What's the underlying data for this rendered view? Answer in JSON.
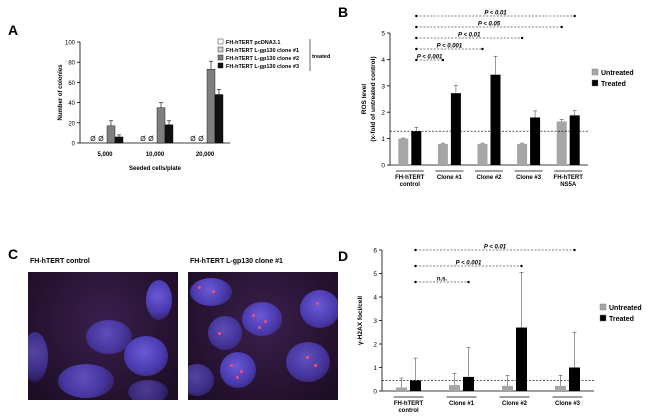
{
  "panels": {
    "a": "A",
    "b": "B",
    "c": "C",
    "d": "D"
  },
  "micrographs": [
    {
      "label": "FH-hTERT control"
    },
    {
      "label": "FH-hTERT L-gp130 clone #1"
    }
  ],
  "chart_data": [
    {
      "type": "bar",
      "panel": "A",
      "xlabel": "Seeded cells/plate",
      "ylabel": "Number of colonies",
      "ylim": [
        0,
        100
      ],
      "yticks": [
        0,
        20,
        40,
        60,
        80,
        100
      ],
      "categories": [
        "5,000",
        "10,000",
        "20,000"
      ],
      "legend_group_label": "treated",
      "zero_marker": "Ø",
      "series": [
        {
          "name": "FH-hTERT pcDNA3.1",
          "color": "#ffffff",
          "values": [
            0,
            0,
            0
          ]
        },
        {
          "name": "FH-hTERT L-gp130 clone #1",
          "color": "#d0d0d0",
          "values": [
            0,
            0,
            0
          ]
        },
        {
          "name": "FH-hTERT L-gp130 clone #2",
          "color": "#7f7f7f",
          "values": [
            17,
            35,
            73
          ]
        },
        {
          "name": "FH-hTERT L-gp130 clone #3",
          "color": "#111111",
          "values": [
            6,
            18,
            48
          ]
        }
      ],
      "errors": [
        [
          0,
          0,
          0
        ],
        [
          0,
          0,
          0
        ],
        [
          5,
          5,
          8
        ],
        [
          2,
          4,
          5
        ]
      ]
    },
    {
      "type": "bar",
      "panel": "B",
      "ylabel": "ROS level",
      "ylabel2": "(x-fold of untreated control)",
      "ylim": [
        0,
        5
      ],
      "yticks": [
        0,
        1,
        2,
        3,
        4,
        5
      ],
      "categories": [
        "FH-hTERT control",
        "Clone #1",
        "Clone #2",
        "Clone #3",
        "FH-hTERT NS5A"
      ],
      "series": [
        {
          "name": "Untreated",
          "color": "#a6a6a6",
          "values": [
            1.0,
            0.8,
            0.8,
            0.8,
            1.65
          ]
        },
        {
          "name": "Treated",
          "color": "#000000",
          "values": [
            1.28,
            2.72,
            3.42,
            1.8,
            1.88
          ]
        }
      ],
      "errors": [
        [
          0.02,
          0.03,
          0.03,
          0.03,
          0.08
        ],
        [
          0.15,
          0.3,
          0.7,
          0.25,
          0.18
        ]
      ],
      "reference_line": 1.28,
      "significance": [
        {
          "from": 1,
          "to": 2,
          "label": "P < 0.001"
        },
        {
          "from": 1,
          "to": 4,
          "label": "P < 0.001"
        },
        {
          "from": 1,
          "to": 6,
          "label": "P < 0.01"
        },
        {
          "from": 1,
          "to": 8,
          "label": "P < 0.05"
        },
        {
          "from": 1,
          "to": 9,
          "label": "P < 0.01"
        }
      ]
    },
    {
      "type": "bar",
      "panel": "D",
      "ylabel": "γ-H2AX foci/cell",
      "ylim": [
        0,
        6
      ],
      "yticks": [
        0,
        1,
        2,
        3,
        4,
        5,
        6
      ],
      "categories": [
        "FH-hTERT control",
        "Clone #1",
        "Clone #2",
        "Clone #3"
      ],
      "series": [
        {
          "name": "Untreated",
          "color": "#a6a6a6",
          "values": [
            0.15,
            0.25,
            0.22,
            0.22
          ]
        },
        {
          "name": "Treated",
          "color": "#000000",
          "values": [
            0.45,
            0.6,
            2.7,
            1.0
          ]
        }
      ],
      "errors": [
        [
          0.4,
          0.5,
          0.45,
          0.45
        ],
        [
          0.95,
          1.25,
          2.35,
          1.5
        ]
      ],
      "reference_line": 0.45,
      "significance": [
        {
          "from": 1,
          "to": 3,
          "label": "n.s."
        },
        {
          "from": 1,
          "to": 5,
          "label": "P < 0.001"
        },
        {
          "from": 1,
          "to": 7,
          "label": "P < 0.01"
        }
      ]
    }
  ]
}
